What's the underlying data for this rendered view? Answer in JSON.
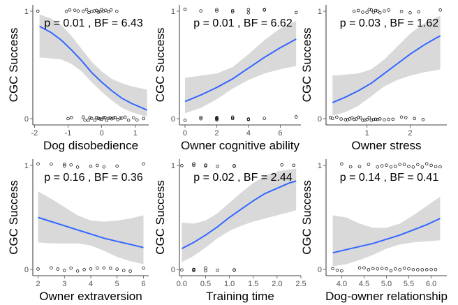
{
  "colors": {
    "fit_line": "#3366ff",
    "ribbon": "#d9d9d9",
    "points": "#000000",
    "axis": "#4d4d4d"
  },
  "chart_data": [
    {
      "type": "scatter",
      "xlabel": "Dog disobedience",
      "ylabel": "CGC Success",
      "annotation": "p = 0.01 , BF = 6.43",
      "xlim": [
        -2.05,
        1.4
      ],
      "ylim": [
        0,
        1
      ],
      "xticks": [
        -2,
        -1,
        0,
        1
      ],
      "xtick_labels": [
        "-2",
        "-1",
        "0",
        "1"
      ],
      "yticks": [
        0,
        1
      ],
      "ytick_labels": [
        "0",
        "1"
      ],
      "grid": false,
      "legend": "none",
      "fit": {
        "x": [
          -1.85,
          -1.5,
          -1.2,
          -0.9,
          -0.6,
          -0.3,
          0.0,
          0.3,
          0.6,
          0.9,
          1.2,
          1.35
        ],
        "y": [
          0.86,
          0.8,
          0.73,
          0.64,
          0.54,
          0.43,
          0.34,
          0.26,
          0.19,
          0.14,
          0.1,
          0.08
        ],
        "lower": [
          0.57,
          0.56,
          0.55,
          0.51,
          0.44,
          0.34,
          0.25,
          0.17,
          0.1,
          0.06,
          0.03,
          0.02
        ],
        "upper": [
          0.97,
          0.93,
          0.87,
          0.77,
          0.65,
          0.53,
          0.44,
          0.37,
          0.33,
          0.3,
          0.28,
          0.27
        ]
      },
      "points": {
        "success_x": [
          -1.9,
          -1.05,
          -0.95,
          -0.8,
          -0.7,
          -0.55,
          -0.45,
          -0.38,
          -0.3,
          -0.22,
          -0.15,
          -0.1,
          -0.05,
          0.0,
          0.05,
          0.12,
          0.2,
          0.28,
          0.45
        ],
        "failure_x": [
          -1.0,
          -0.9,
          -0.55,
          -0.5,
          -0.4,
          -0.35,
          -0.3,
          -0.2,
          -0.15,
          -0.1,
          -0.05,
          0.0,
          0.05,
          0.1,
          0.15,
          0.2,
          0.25,
          0.3,
          0.35,
          0.4,
          0.48,
          0.55,
          0.6,
          0.7,
          0.8,
          0.95,
          1.05,
          1.25
        ]
      }
    },
    {
      "type": "scatter",
      "xlabel": "Owner cognitive ability",
      "ylabel": "CGC Success",
      "annotation": "p = 0.01 , BF = 6.62",
      "xlim": [
        -0.35,
        7.3
      ],
      "ylim": [
        0,
        1
      ],
      "xticks": [
        0,
        2,
        4,
        6
      ],
      "xtick_labels": [
        "0",
        "2",
        "4",
        "6"
      ],
      "yticks": [
        0,
        1
      ],
      "ytick_labels": [
        "0",
        "1"
      ],
      "grid": false,
      "legend": "none",
      "fit": {
        "x": [
          0,
          1,
          2,
          3,
          4,
          5,
          6,
          7
        ],
        "y": [
          0.16,
          0.22,
          0.29,
          0.37,
          0.47,
          0.57,
          0.66,
          0.74
        ],
        "lower": [
          0.05,
          0.1,
          0.18,
          0.28,
          0.36,
          0.42,
          0.46,
          0.49
        ],
        "upper": [
          0.38,
          0.4,
          0.42,
          0.48,
          0.6,
          0.73,
          0.84,
          0.91
        ]
      },
      "points": {
        "success_x": [
          0,
          1,
          2,
          2,
          3,
          3,
          4,
          4,
          5,
          5,
          7
        ],
        "failure_x": [
          0,
          1,
          1,
          2,
          2,
          2,
          2,
          2,
          3,
          3,
          3,
          4,
          4,
          5,
          7
        ]
      }
    },
    {
      "type": "scatter",
      "xlabel": "Owner stress",
      "ylabel": "CGC Success",
      "annotation": "p = 0.03 , BF = 1.62",
      "xlim": [
        0.05,
        2.85
      ],
      "ylim": [
        0,
        1
      ],
      "xticks": [
        1,
        2
      ],
      "xtick_labels": [
        "1",
        "2"
      ],
      "yticks": [
        0,
        1
      ],
      "ytick_labels": [
        "0",
        "1"
      ],
      "grid": false,
      "legend": "none",
      "fit": {
        "x": [
          0.2,
          0.5,
          0.8,
          1.1,
          1.4,
          1.7,
          2.0,
          2.3,
          2.6,
          2.7
        ],
        "y": [
          0.15,
          0.2,
          0.26,
          0.33,
          0.42,
          0.51,
          0.6,
          0.68,
          0.75,
          0.77
        ],
        "lower": [
          0.03,
          0.06,
          0.12,
          0.21,
          0.3,
          0.36,
          0.4,
          0.43,
          0.45,
          0.46
        ],
        "upper": [
          0.4,
          0.41,
          0.42,
          0.46,
          0.55,
          0.67,
          0.79,
          0.88,
          0.94,
          0.96
        ]
      },
      "points": {
        "success_x": [
          0.7,
          0.8,
          0.9,
          1.0,
          1.05,
          1.1,
          1.15,
          1.2,
          1.25,
          1.3,
          1.4,
          1.5,
          1.8,
          2.0,
          2.2,
          2.7
        ],
        "failure_x": [
          0.15,
          0.2,
          0.3,
          0.4,
          0.5,
          0.55,
          0.6,
          0.65,
          0.7,
          0.75,
          0.8,
          0.85,
          0.9,
          0.95,
          1.0,
          1.05,
          1.1,
          1.15,
          1.2,
          1.25,
          1.3,
          1.4,
          1.5,
          1.6,
          1.8,
          1.9,
          2.1,
          2.3
        ]
      }
    },
    {
      "type": "scatter",
      "xlabel": "Owner extraversion",
      "ylabel": "CGC Success",
      "annotation": "p = 0.16 , BF = 0.36",
      "xlim": [
        1.8,
        6.2
      ],
      "ylim": [
        0,
        1
      ],
      "xticks": [
        2,
        3,
        4,
        5,
        6
      ],
      "xtick_labels": [
        "2",
        "3",
        "4",
        "5",
        "6"
      ],
      "yticks": [
        0,
        1
      ],
      "ytick_labels": [
        "0",
        "1"
      ],
      "grid": false,
      "legend": "none",
      "fit": {
        "x": [
          2.0,
          2.5,
          3.0,
          3.5,
          4.0,
          4.5,
          5.0,
          5.5,
          6.0
        ],
        "y": [
          0.5,
          0.46,
          0.42,
          0.38,
          0.34,
          0.3,
          0.27,
          0.24,
          0.21
        ],
        "lower": [
          0.26,
          0.25,
          0.25,
          0.25,
          0.23,
          0.18,
          0.12,
          0.08,
          0.05
        ],
        "upper": [
          0.75,
          0.68,
          0.6,
          0.52,
          0.47,
          0.46,
          0.47,
          0.49,
          0.52
        ]
      },
      "points": {
        "success_x": [
          2.0,
          2.5,
          3.0,
          3.0,
          3.25,
          3.5,
          4.0,
          4.25,
          4.5,
          5.0,
          6.0
        ],
        "failure_x": [
          2.0,
          2.5,
          2.75,
          3.0,
          3.25,
          3.5,
          3.75,
          4.0,
          4.25,
          4.5,
          4.75,
          5.0,
          5.25,
          5.5,
          6.0
        ]
      }
    },
    {
      "type": "scatter",
      "xlabel": "Training time",
      "ylabel": "CGC Success",
      "annotation": "p = 0.02 , BF = 2.44",
      "xlim": [
        -0.05,
        2.5
      ],
      "ylim": [
        0,
        1
      ],
      "xticks": [
        0.0,
        0.5,
        1.0,
        1.5,
        2.0,
        2.5
      ],
      "xtick_labels": [
        "0.0",
        "0.5",
        "1.0",
        "1.5",
        "2.0",
        "2.5"
      ],
      "yticks": [
        0,
        1
      ],
      "ytick_labels": [
        "0",
        "1"
      ],
      "grid": false,
      "legend": "none",
      "fit": {
        "x": [
          0.0,
          0.25,
          0.5,
          0.75,
          1.0,
          1.25,
          1.5,
          1.75,
          2.0,
          2.25,
          2.4
        ],
        "y": [
          0.2,
          0.26,
          0.33,
          0.41,
          0.5,
          0.58,
          0.66,
          0.73,
          0.78,
          0.83,
          0.85
        ],
        "lower": [
          0.07,
          0.13,
          0.21,
          0.3,
          0.37,
          0.42,
          0.46,
          0.49,
          0.52,
          0.55,
          0.57
        ],
        "upper": [
          0.45,
          0.44,
          0.47,
          0.54,
          0.64,
          0.74,
          0.83,
          0.9,
          0.94,
          0.96,
          0.97
        ]
      },
      "points": {
        "success_x": [
          0.0,
          0.25,
          0.25,
          0.5,
          0.5,
          0.75,
          1.1,
          1.1,
          2.1,
          2.35
        ],
        "failure_x": [
          0.0,
          0.25,
          0.25,
          0.25,
          0.5,
          0.5,
          0.75,
          1.1,
          1.1
        ]
      }
    },
    {
      "type": "scatter",
      "xlabel": "Dog-owner relationship",
      "ylabel": "CGC Success",
      "annotation": "p = 0.14 , BF = 0.41",
      "xlim": [
        3.65,
        6.35
      ],
      "ylim": [
        0,
        1
      ],
      "xticks": [
        4.0,
        4.5,
        5.0,
        5.5,
        6.0
      ],
      "xtick_labels": [
        "4.0",
        "4.5",
        "5.0",
        "5.5",
        "6.0"
      ],
      "yticks": [
        0,
        1
      ],
      "ytick_labels": [
        "0",
        "1"
      ],
      "grid": false,
      "legend": "none",
      "fit": {
        "x": [
          3.8,
          4.1,
          4.4,
          4.7,
          5.0,
          5.3,
          5.6,
          5.9,
          6.2
        ],
        "y": [
          0.16,
          0.19,
          0.22,
          0.25,
          0.29,
          0.33,
          0.38,
          0.43,
          0.49
        ],
        "lower": [
          0.03,
          0.05,
          0.09,
          0.14,
          0.2,
          0.24,
          0.26,
          0.27,
          0.28
        ],
        "upper": [
          0.52,
          0.5,
          0.44,
          0.4,
          0.4,
          0.44,
          0.52,
          0.61,
          0.7
        ]
      },
      "points": {
        "success_x": [
          4.0,
          4.2,
          4.4,
          4.6,
          4.8,
          4.9,
          5.0,
          5.1,
          5.2,
          5.3,
          5.4,
          5.5,
          5.6,
          5.7,
          5.8,
          5.9,
          6.0,
          6.1,
          6.2
        ],
        "failure_x": [
          3.8,
          3.9,
          4.0,
          4.4,
          4.5,
          4.6,
          4.7,
          4.8,
          4.9,
          5.0,
          5.1,
          5.2,
          5.3,
          5.4,
          5.5,
          5.6,
          5.7,
          5.8,
          5.9,
          6.0,
          6.1
        ]
      }
    }
  ]
}
